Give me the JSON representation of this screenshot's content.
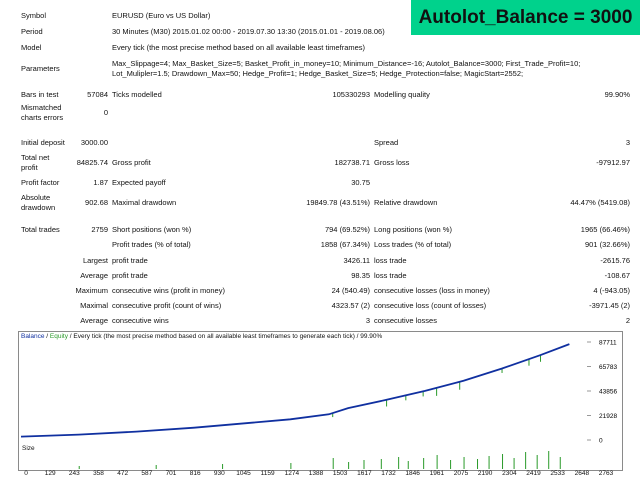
{
  "banner": "Autolot_Balance = 3000",
  "top": {
    "symbol_label": "Symbol",
    "symbol_value": "EURUSD (Euro vs US Dollar)",
    "period_label": "Period",
    "period_value": "30 Minutes (M30) 2015.01.02 00:00 - 2019.07.30 13:30 (2015.01.01 - 2019.08.06)",
    "model_label": "Model",
    "model_value": "Every tick (the most precise method based on all available least timeframes)",
    "params_label": "Parameters",
    "params_line1": "Max_Slippage=4; Max_Basket_Size=5; Basket_Profit_in_money=10; Minimum_Distance=-16; Autolot_Balance=3000; First_Trade_Profit=10;",
    "params_line2": "Lot_Mulipler=1.5; Drawdown_Max=50; Hedge_Profit=1; Hedge_Basket_Size=5; Hedge_Protection=false; MagicStart=2552;",
    "bars_label": "Bars in test",
    "bars_value": "57084",
    "ticks_label": "Ticks modelled",
    "ticks_value": "105330293",
    "quality_label": "Modelling quality",
    "quality_value": "99.90%",
    "mismatch_label_1": "Mismatched",
    "mismatch_label_2": "charts errors",
    "mismatch_value": "0"
  },
  "stats": {
    "initial_deposit_label": "Initial deposit",
    "initial_deposit_value": "3000.00",
    "spread_label": "Spread",
    "spread_value": "3",
    "net_profit_label_1": "Total net",
    "net_profit_label_2": "profit",
    "net_profit_value": "84825.74",
    "gross_profit_label": "Gross profit",
    "gross_profit_value": "182738.71",
    "gross_loss_label": "Gross loss",
    "gross_loss_value": "-97912.97",
    "profit_factor_label": "Profit factor",
    "profit_factor_value": "1.87",
    "expected_payoff_label": "Expected payoff",
    "expected_payoff_value": "30.75",
    "abs_dd_label_1": "Absolute",
    "abs_dd_label_2": "drawdown",
    "abs_dd_value": "902.68",
    "max_dd_label": "Maximal drawdown",
    "max_dd_value": "19849.78 (43.51%)",
    "rel_dd_label": "Relative drawdown",
    "rel_dd_value": "44.47% (5419.08)"
  },
  "trades": {
    "total_label": "Total trades",
    "total_value": "2759",
    "short_label": "Short positions (won %)",
    "short_value": "794 (69.52%)",
    "long_label": "Long positions (won %)",
    "long_value": "1965 (66.46%)",
    "profit_trades_label": "Profit trades (% of total)",
    "profit_trades_value": "1858 (67.34%)",
    "loss_trades_label": "Loss trades (% of total)",
    "loss_trades_value": "901 (32.66%)",
    "largest_label": "Largest",
    "largest_profit_label": "profit trade",
    "largest_profit_value": "3426.11",
    "largest_loss_label": "loss trade",
    "largest_loss_value": "-2615.76",
    "average_label": "Average",
    "average_profit_label": "profit trade",
    "average_profit_value": "98.35",
    "average_loss_label": "loss trade",
    "average_loss_value": "-108.67",
    "maximum_label": "Maximum",
    "max_cons_wins_label": "consecutive wins (profit in money)",
    "max_cons_wins_value": "24 (540.49)",
    "max_cons_losses_label": "consecutive losses (loss in money)",
    "max_cons_losses_value": "4 (-943.05)",
    "maximal_label": "Maximal",
    "maximal_cons_profit_label": "consecutive profit (count of wins)",
    "maximal_cons_profit_value": "4323.57 (2)",
    "maximal_cons_loss_label": "consecutive loss (count of losses)",
    "maximal_cons_loss_value": "-3971.45 (2)",
    "avg_label": "Average",
    "avg_cons_wins_label": "consecutive wins",
    "avg_cons_wins_value": "3",
    "avg_cons_losses_label": "consecutive losses",
    "avg_cons_losses_value": "2"
  },
  "chart_legend": {
    "balance": "Balance",
    "sep1": " / ",
    "equity": "Equity",
    "rest": " / Every tick (the most precise method based on all available least timeframes to generate each tick) / 99.90%"
  },
  "size_label": "Size",
  "colors": {
    "balance": "#1030a0",
    "equity": "#2a9a2a",
    "banner": "#00d28c"
  },
  "chart_data": {
    "type": "line",
    "x_ticks": [
      "0",
      "129",
      "243",
      "358",
      "472",
      "587",
      "701",
      "816",
      "930",
      "1045",
      "1159",
      "1274",
      "1388",
      "1503",
      "1617",
      "1732",
      "1846",
      "1961",
      "2075",
      "2190",
      "2304",
      "2419",
      "2533",
      "2648",
      "2763"
    ],
    "y_ticks": [
      87711,
      65783,
      43856,
      21928,
      0
    ],
    "ylim": [
      0,
      87711
    ],
    "xlim": [
      0,
      2900
    ],
    "series": [
      {
        "name": "Balance",
        "x": [
          0,
          300,
          600,
          900,
          1200,
          1400,
          1600,
          1700,
          1900,
          2100,
          2300,
          2500,
          2700,
          2850
        ],
        "values": [
          3000,
          4800,
          7500,
          11000,
          15500,
          18500,
          23000,
          28500,
          36000,
          44000,
          53000,
          64000,
          76000,
          85800
        ]
      }
    ],
    "equity_dips": [
      {
        "x": 1620,
        "low": 20500
      },
      {
        "x": 1900,
        "low": 30000
      },
      {
        "x": 2000,
        "low": 35500
      },
      {
        "x": 2090,
        "low": 39000
      },
      {
        "x": 2160,
        "low": 39500
      },
      {
        "x": 2280,
        "low": 45000
      },
      {
        "x": 2500,
        "low": 60000
      },
      {
        "x": 2640,
        "low": 66500
      },
      {
        "x": 2700,
        "low": 70000
      }
    ],
    "size_bars": [
      {
        "x": 300,
        "v": 0.15
      },
      {
        "x": 700,
        "v": 0.2
      },
      {
        "x": 1045,
        "v": 0.25
      },
      {
        "x": 1400,
        "v": 0.3
      },
      {
        "x": 1620,
        "v": 0.55
      },
      {
        "x": 1700,
        "v": 0.35
      },
      {
        "x": 1780,
        "v": 0.45
      },
      {
        "x": 1870,
        "v": 0.5
      },
      {
        "x": 1960,
        "v": 0.6
      },
      {
        "x": 2010,
        "v": 0.4
      },
      {
        "x": 2090,
        "v": 0.55
      },
      {
        "x": 2160,
        "v": 0.7
      },
      {
        "x": 2230,
        "v": 0.45
      },
      {
        "x": 2300,
        "v": 0.6
      },
      {
        "x": 2370,
        "v": 0.5
      },
      {
        "x": 2430,
        "v": 0.65
      },
      {
        "x": 2500,
        "v": 0.75
      },
      {
        "x": 2560,
        "v": 0.55
      },
      {
        "x": 2620,
        "v": 0.85
      },
      {
        "x": 2680,
        "v": 0.7
      },
      {
        "x": 2740,
        "v": 0.9
      },
      {
        "x": 2800,
        "v": 0.6
      }
    ]
  }
}
